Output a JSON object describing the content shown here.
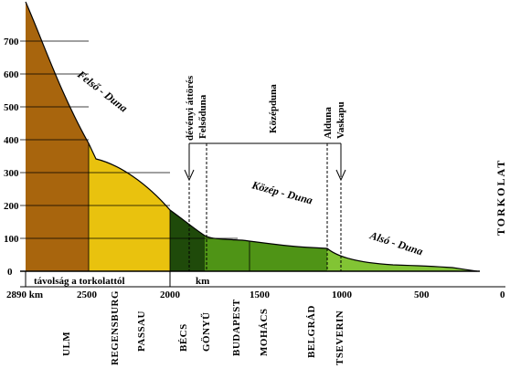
{
  "y_ticks": [
    "700",
    "600",
    "500",
    "400",
    "300",
    "200",
    "100",
    "0"
  ],
  "x_ticks": [
    "2890 km",
    "2500",
    "2000",
    "1500",
    "1000",
    "500",
    "0"
  ],
  "distance_label": "távolság a torkolattól",
  "km_label": "km",
  "section_labels": {
    "felso": "Felső - Duna",
    "kozep": "Közép - Duna",
    "also": "Alsó - Duna"
  },
  "vertical_labels": {
    "deveny": "dévényi áttörés",
    "felsoduna": "Felsőduna",
    "kozepduna": "Középduna",
    "alduna": "Alduna",
    "vaskapu": "Vaskapu",
    "torkolat": "TORKOLAT"
  },
  "cities": [
    {
      "name": "ULM",
      "color": "#b07a1c"
    },
    {
      "name": "REGENSBURG",
      "color": "#000000"
    },
    {
      "name": "PASSAU",
      "color": "#000000"
    },
    {
      "name": "BÉCS",
      "color": "#000000"
    },
    {
      "name": "GÖNYŰ",
      "color": "#000000"
    },
    {
      "name": "BUDAPEST",
      "color": "#000000"
    },
    {
      "name": "MOHÁCS",
      "color": "#000000"
    },
    {
      "name": "BELGRÁD",
      "color": "#000000"
    },
    {
      "name": "TSEVERIN",
      "color": "#000000"
    }
  ],
  "colors": {
    "felso_brown": "#a8650d",
    "felso_yellow": "#e9c20e",
    "kozep_dark": "#1f4a0a",
    "kozep_green": "#4f9416",
    "also_light": "#82c434",
    "ulm": "#b07a1c"
  }
}
